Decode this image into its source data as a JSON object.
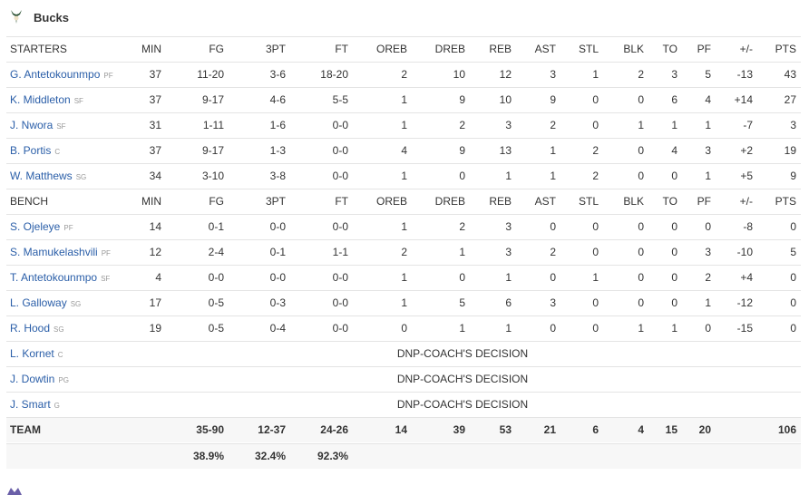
{
  "header": {
    "title": "Bucks"
  },
  "starters": {
    "columns": [
      "STARTERS",
      "MIN",
      "FG",
      "3PT",
      "FT",
      "OREB",
      "DREB",
      "REB",
      "AST",
      "STL",
      "BLK",
      "TO",
      "PF",
      "+/-",
      "PTS"
    ],
    "rows": [
      {
        "name": "G. Antetokounmpo",
        "pos": "PF",
        "stats": [
          "37",
          "11-20",
          "3-6",
          "18-20",
          "2",
          "10",
          "12",
          "3",
          "1",
          "2",
          "3",
          "5",
          "-13",
          "43"
        ]
      },
      {
        "name": "K. Middleton",
        "pos": "SF",
        "stats": [
          "37",
          "9-17",
          "4-6",
          "5-5",
          "1",
          "9",
          "10",
          "9",
          "0",
          "0",
          "6",
          "4",
          "+14",
          "27"
        ]
      },
      {
        "name": "J. Nwora",
        "pos": "SF",
        "stats": [
          "31",
          "1-11",
          "1-6",
          "0-0",
          "1",
          "2",
          "3",
          "2",
          "0",
          "1",
          "1",
          "1",
          "-7",
          "3"
        ]
      },
      {
        "name": "B. Portis",
        "pos": "C",
        "stats": [
          "37",
          "9-17",
          "1-3",
          "0-0",
          "4",
          "9",
          "13",
          "1",
          "2",
          "0",
          "4",
          "3",
          "+2",
          "19"
        ]
      },
      {
        "name": "W. Matthews",
        "pos": "SG",
        "stats": [
          "34",
          "3-10",
          "3-8",
          "0-0",
          "1",
          "0",
          "1",
          "1",
          "2",
          "0",
          "0",
          "1",
          "+5",
          "9"
        ]
      }
    ]
  },
  "bench": {
    "columns": [
      "BENCH",
      "MIN",
      "FG",
      "3PT",
      "FT",
      "OREB",
      "DREB",
      "REB",
      "AST",
      "STL",
      "BLK",
      "TO",
      "PF",
      "+/-",
      "PTS"
    ],
    "rows": [
      {
        "name": "S. Ojeleye",
        "pos": "PF",
        "stats": [
          "14",
          "0-1",
          "0-0",
          "0-0",
          "1",
          "2",
          "3",
          "0",
          "0",
          "0",
          "0",
          "0",
          "-8",
          "0"
        ]
      },
      {
        "name": "S. Mamukelashvili",
        "pos": "PF",
        "stats": [
          "12",
          "2-4",
          "0-1",
          "1-1",
          "2",
          "1",
          "3",
          "2",
          "0",
          "0",
          "0",
          "3",
          "-10",
          "5"
        ]
      },
      {
        "name": "T. Antetokounmpo",
        "pos": "SF",
        "stats": [
          "4",
          "0-0",
          "0-0",
          "0-0",
          "1",
          "0",
          "1",
          "0",
          "1",
          "0",
          "0",
          "2",
          "+4",
          "0"
        ]
      },
      {
        "name": "L. Galloway",
        "pos": "SG",
        "stats": [
          "17",
          "0-5",
          "0-3",
          "0-0",
          "1",
          "5",
          "6",
          "3",
          "0",
          "0",
          "0",
          "1",
          "-12",
          "0"
        ]
      },
      {
        "name": "R. Hood",
        "pos": "SG",
        "stats": [
          "19",
          "0-5",
          "0-4",
          "0-0",
          "0",
          "1",
          "1",
          "0",
          "0",
          "1",
          "1",
          "0",
          "-15",
          "0"
        ]
      },
      {
        "name": "L. Kornet",
        "pos": "C",
        "note": "DNP-COACH'S DECISION"
      },
      {
        "name": "J. Dowtin",
        "pos": "PG",
        "note": "DNP-COACH'S DECISION"
      },
      {
        "name": "J. Smart",
        "pos": "G",
        "note": "DNP-COACH'S DECISION"
      }
    ]
  },
  "team": {
    "label": "TEAM",
    "totals": {
      "FG": "35-90",
      "3PT": "12-37",
      "FT": "24-26",
      "OREB": "14",
      "DREB": "39",
      "REB": "53",
      "AST": "21",
      "STL": "6",
      "BLK": "4",
      "TO": "15",
      "PF": "20",
      "PTS": "106"
    },
    "percentages": {
      "FG": "38.9%",
      "3PT": "32.4%",
      "FT": "92.3%"
    }
  }
}
